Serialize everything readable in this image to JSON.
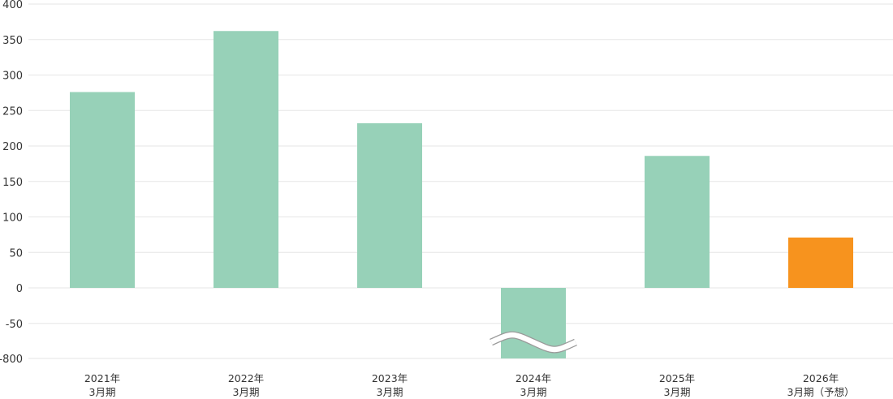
{
  "chart_data": {
    "type": "bar",
    "title": "",
    "xlabel": "",
    "ylabel": "",
    "categories": [
      [
        "2021年",
        "3月期"
      ],
      [
        "2022年",
        "3月期"
      ],
      [
        "2023年",
        "3月期"
      ],
      [
        "2024年",
        "3月期"
      ],
      [
        "2025年",
        "3月期"
      ],
      [
        "2026年",
        "3月期（予想）"
      ]
    ],
    "values": [
      276,
      362,
      232,
      -800,
      186,
      71
    ],
    "forecast": [
      false,
      false,
      false,
      false,
      false,
      true
    ],
    "y_ticks": [
      "400",
      "350",
      "300",
      "250",
      "200",
      "150",
      "100",
      "50",
      "0",
      "-50",
      "-800"
    ],
    "ylim": [
      -800,
      400
    ],
    "axis_break": {
      "between": [
        -50,
        -800
      ]
    },
    "grid": true,
    "legend": "none",
    "colors": {
      "actual": "#97d1b8",
      "forecast": "#f7931e",
      "grid": "#e6e6e6",
      "text": "#333333"
    }
  }
}
